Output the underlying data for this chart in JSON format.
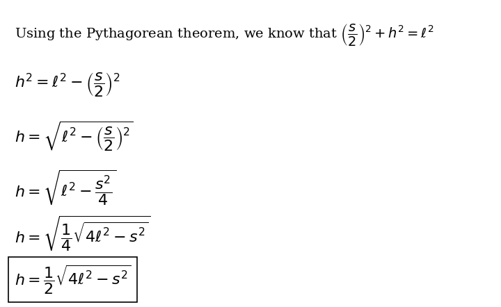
{
  "background_color": "#ffffff",
  "text_color": "#000000",
  "fig_width": 7.2,
  "fig_height": 4.42,
  "dpi": 100,
  "line1": "Using the Pythagorean theorem, we know that $\\left(\\dfrac{s}{2}\\right)^2 + h^2 = \\ell^2$",
  "line2": "$h^2 = \\ell^2 - \\left(\\dfrac{s}{2}\\right)^2$",
  "line3": "$h = \\sqrt{\\ell^2 - \\left(\\dfrac{s}{2}\\right)^2}$",
  "line4": "$h = \\sqrt{\\ell^2 - \\dfrac{s^2}{4}}$",
  "line5": "$h = \\sqrt{\\dfrac{1}{4}\\sqrt{4\\ell^2 - s^2}}$",
  "line6": "$h = \\dfrac{1}{2}\\sqrt{4\\ell^2 - s^2}$",
  "fontsize_line1": 14,
  "fontsize_lines": 16,
  "box_line6": true
}
